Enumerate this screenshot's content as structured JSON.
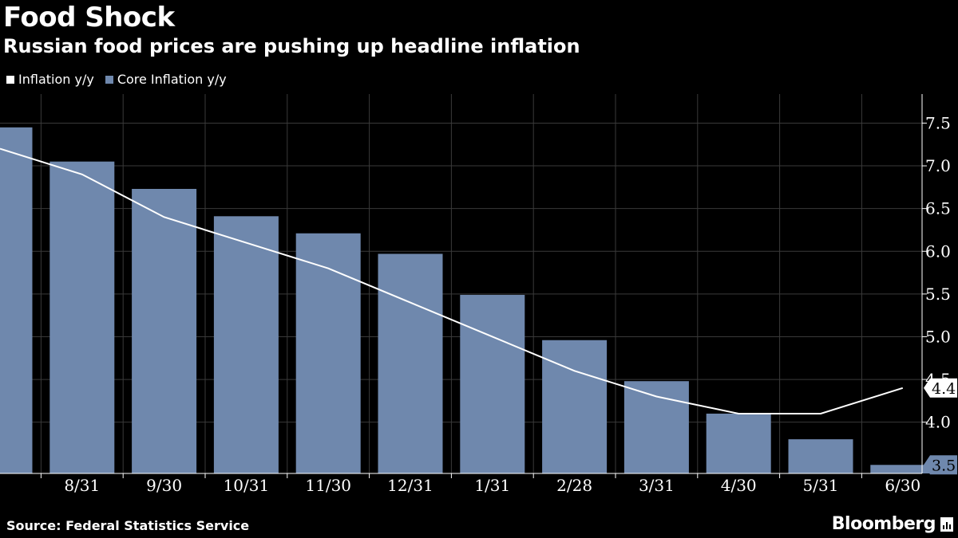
{
  "header": {
    "title": "Food Shock",
    "subtitle": "Russian food prices are pushing up headline inflation"
  },
  "legend": {
    "items": [
      {
        "label": "Inflation y/y",
        "color": "#ffffff"
      },
      {
        "label": "Core Inflation y/y",
        "color": "#6f88ad"
      }
    ]
  },
  "footer": {
    "source": "Source: Federal Statistics Service",
    "brand": "Bloomberg"
  },
  "chart_data": {
    "type": "bar",
    "categories": [
      "",
      "8/31",
      "9/30",
      "10/31",
      "11/30",
      "12/31",
      "1/31",
      "2/28",
      "3/31",
      "4/30",
      "5/31",
      "6/30"
    ],
    "series": [
      {
        "name": "Core Inflation y/y",
        "type": "bar",
        "color": "#6f88ad",
        "values": [
          7.45,
          7.05,
          6.73,
          6.41,
          6.21,
          5.97,
          5.49,
          4.96,
          4.48,
          4.1,
          3.8,
          3.5
        ]
      },
      {
        "name": "Inflation y/y",
        "type": "line",
        "color": "#ffffff",
        "values": [
          7.2,
          6.9,
          6.4,
          6.1,
          5.8,
          5.4,
          5.0,
          4.6,
          4.3,
          4.1,
          4.1,
          4.4
        ]
      }
    ],
    "y_ticks": [
      "4.0",
      "4.5",
      "5.0",
      "5.5",
      "6.0",
      "6.5",
      "7.0",
      "7.5"
    ],
    "ylim": [
      3.4,
      7.84
    ],
    "y_axis_position": "right",
    "grid": true,
    "callouts": [
      {
        "series": "Inflation y/y",
        "label": "4.4",
        "value": 4.4,
        "fill": "#ffffff",
        "text_color": "#000000"
      },
      {
        "series": "Core Inflation y/y",
        "label": "3.5",
        "value": 3.5,
        "fill": "#6f88ad",
        "text_color": "#000000"
      }
    ]
  }
}
